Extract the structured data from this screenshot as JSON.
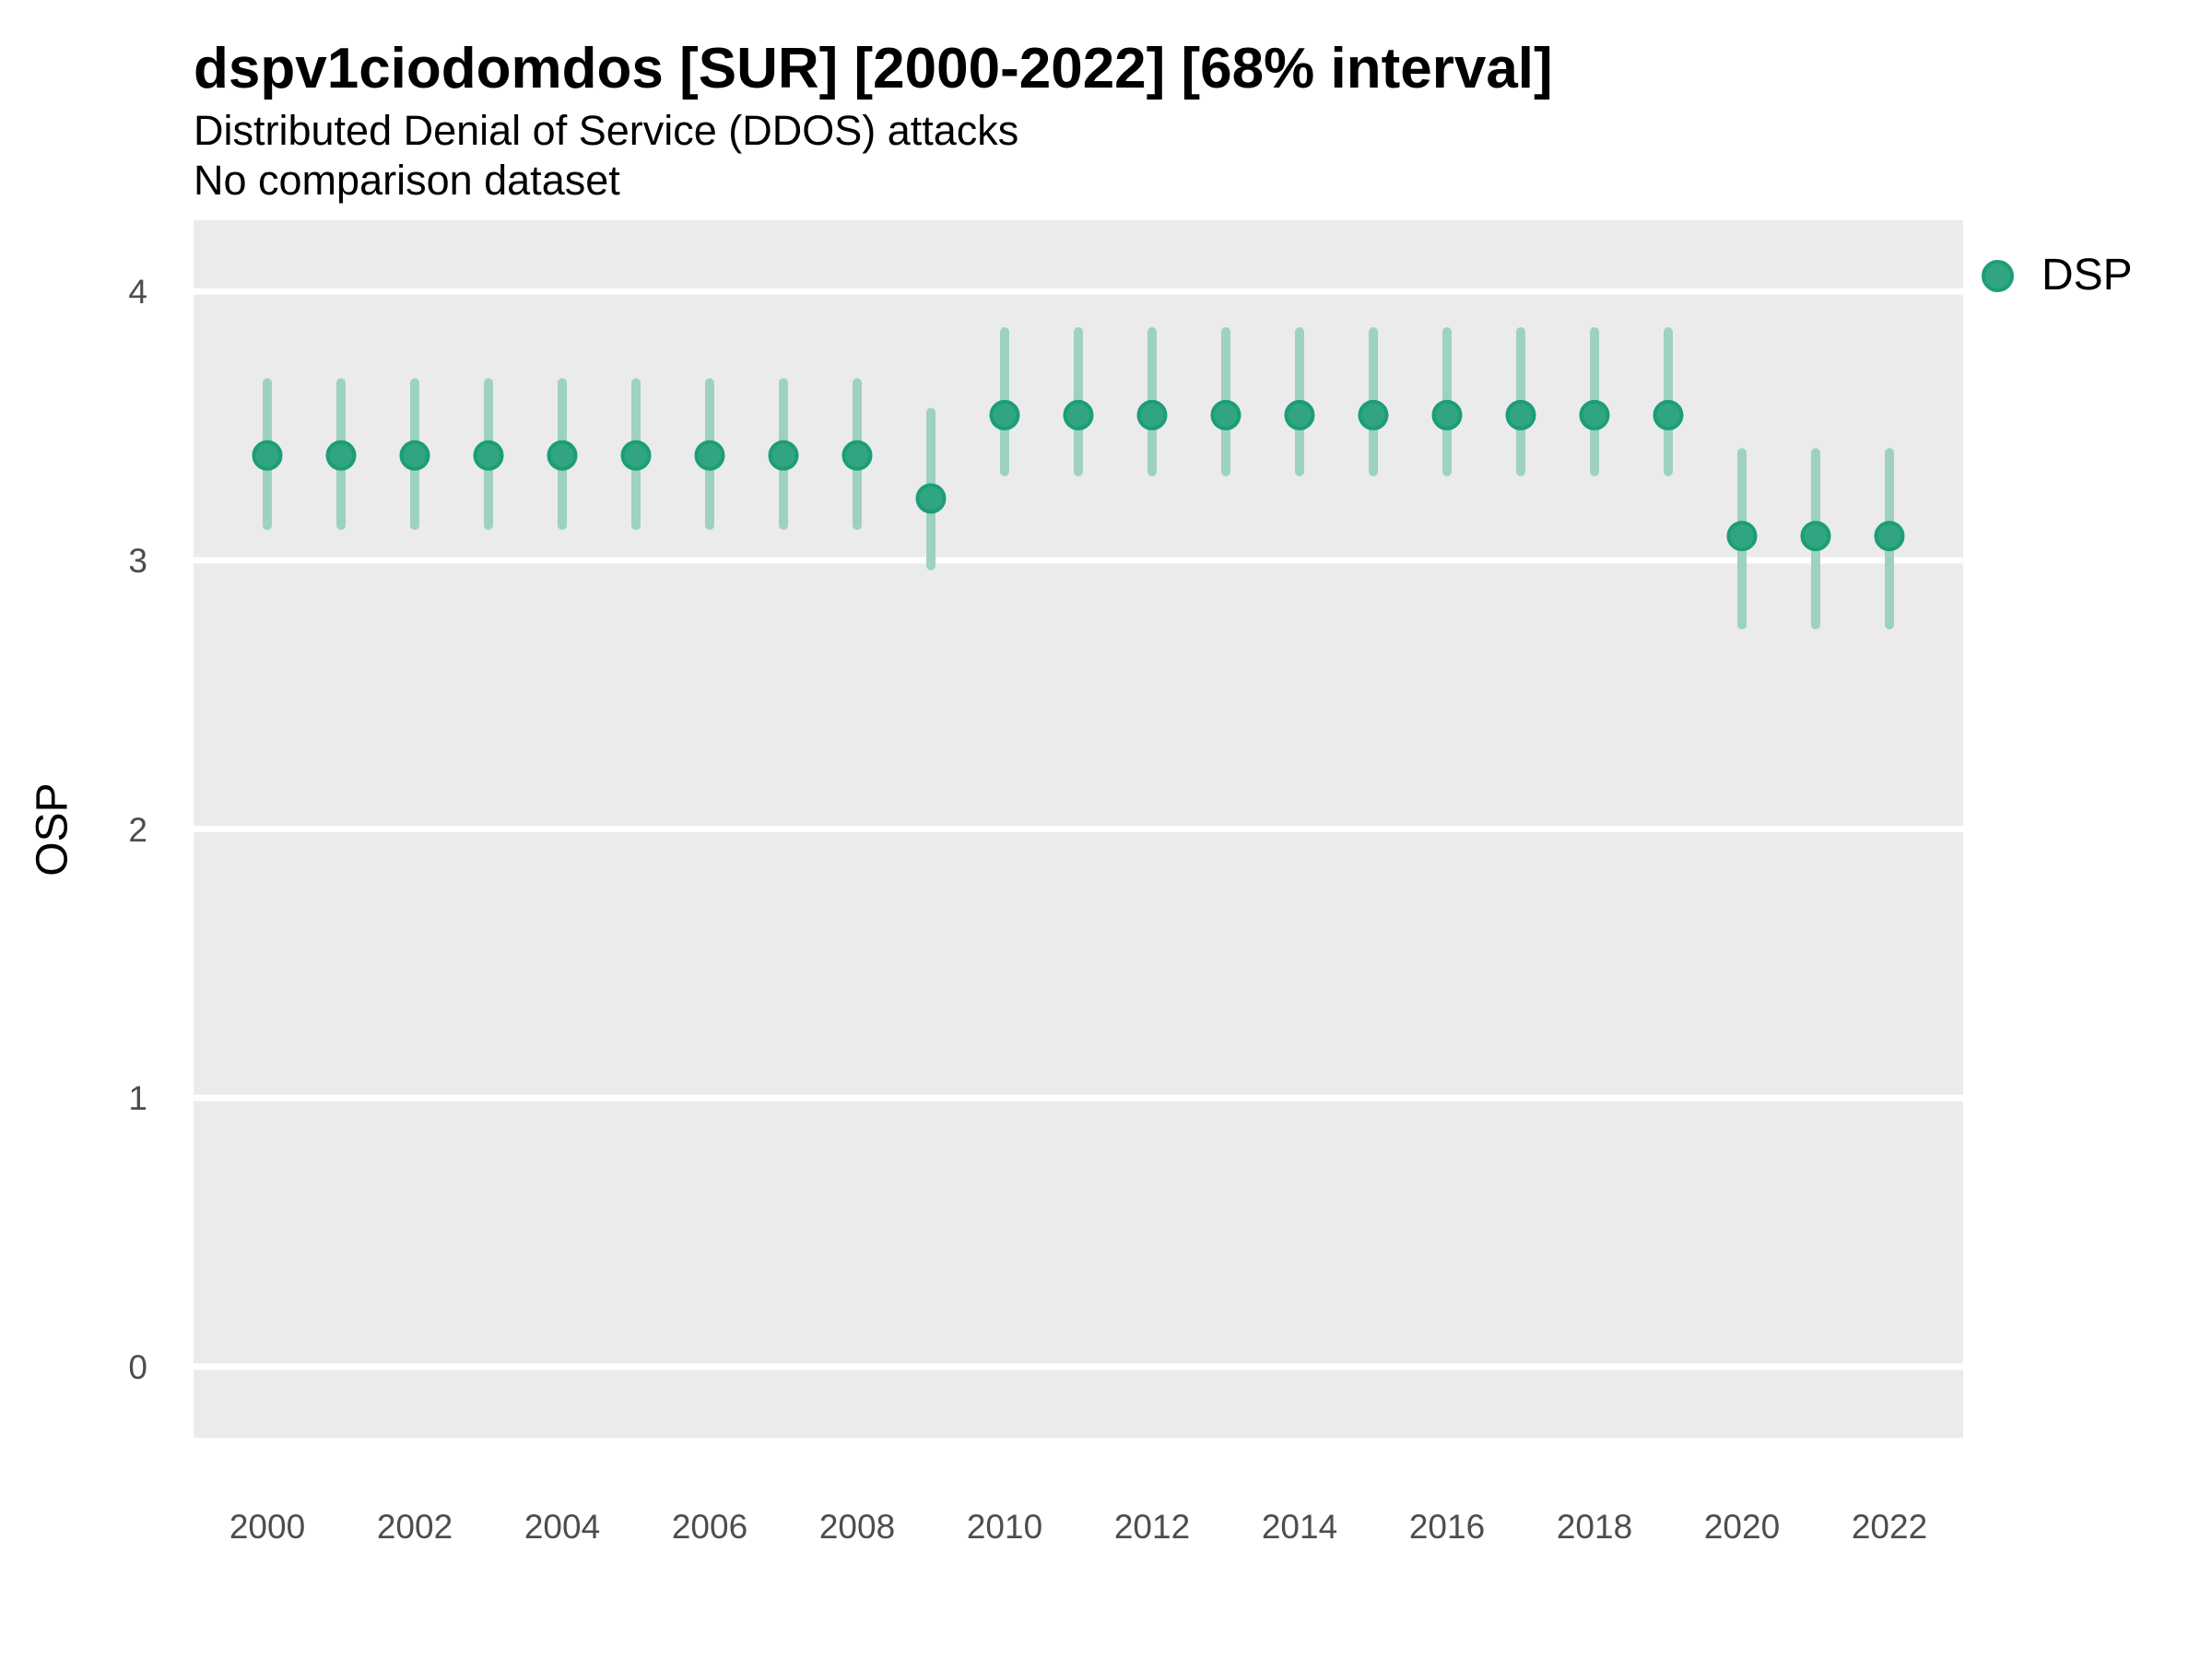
{
  "header": {
    "title": "dspv1ciodomdos [SUR] [2000-2022] [68% interval]",
    "subtitle": "Distributed Denial of Service (DDOS) attacks",
    "note": "No comparison dataset"
  },
  "legend": {
    "position": "right-top",
    "items": [
      {
        "label": "DSP",
        "color": "#1B9E77"
      }
    ]
  },
  "axes": {
    "ylabel": "OSP",
    "xlabel": "",
    "tick_label_color": "#4D4D4D"
  },
  "chart_data": {
    "type": "scatter",
    "title": "dspv1ciodomdos [SUR] [2000-2022] [68% interval]",
    "subtitle": "Distributed Denial of Service (DDOS) attacks",
    "note": "No comparison dataset",
    "xlabel": "",
    "ylabel": "OSP",
    "interval_level": "68%",
    "grid": "horizontal-major-only",
    "panel_bg": "#EBEBEB",
    "gridline_color": "#FFFFFF",
    "legend_position": "right-top",
    "x_ticks": [
      2000,
      2002,
      2004,
      2006,
      2008,
      2010,
      2012,
      2014,
      2016,
      2018,
      2020,
      2022
    ],
    "y_ticks": [
      0,
      1,
      2,
      3,
      4
    ],
    "x_range": [
      1999.0,
      2023.0
    ],
    "y_range": [
      -0.265,
      4.265
    ],
    "series": [
      {
        "name": "DSP",
        "point_color": "#31A581",
        "point_stroke": "#1B9E77",
        "interval_color": "#9DD2C0",
        "x": [
          2000,
          2001,
          2002,
          2003,
          2004,
          2005,
          2006,
          2007,
          2008,
          2009,
          2010,
          2011,
          2012,
          2013,
          2014,
          2015,
          2016,
          2017,
          2018,
          2019,
          2020,
          2021,
          2022
        ],
        "mid": [
          3.39,
          3.39,
          3.39,
          3.39,
          3.39,
          3.39,
          3.39,
          3.39,
          3.39,
          3.23,
          3.54,
          3.54,
          3.54,
          3.54,
          3.54,
          3.54,
          3.54,
          3.54,
          3.54,
          3.54,
          3.09,
          3.09,
          3.09
        ],
        "lo": [
          3.13,
          3.13,
          3.13,
          3.13,
          3.13,
          3.13,
          3.13,
          3.13,
          3.13,
          2.98,
          3.33,
          3.33,
          3.33,
          3.33,
          3.33,
          3.33,
          3.33,
          3.33,
          3.33,
          3.33,
          2.76,
          2.76,
          2.76
        ],
        "hi": [
          3.66,
          3.66,
          3.66,
          3.66,
          3.66,
          3.66,
          3.66,
          3.66,
          3.66,
          3.55,
          3.85,
          3.85,
          3.85,
          3.85,
          3.85,
          3.85,
          3.85,
          3.85,
          3.85,
          3.85,
          3.4,
          3.4,
          3.4
        ]
      }
    ]
  }
}
